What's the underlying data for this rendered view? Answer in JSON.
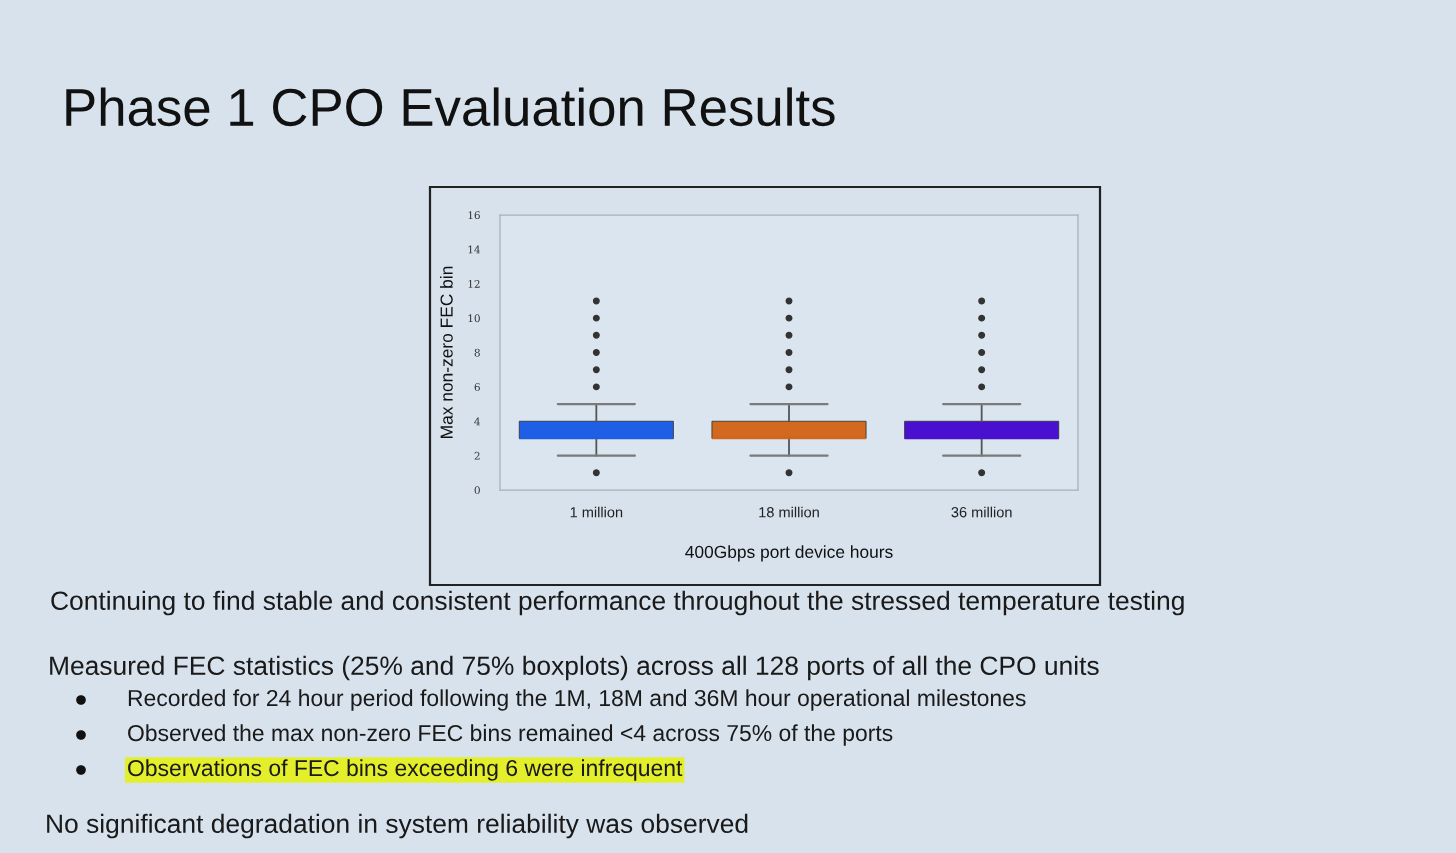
{
  "chart_data": {
    "type": "box",
    "title": "Phase 1 CPO Evaluation Results",
    "xlabel": "400Gbps port device hours",
    "ylabel": "Max non-zero FEC bin",
    "categories": [
      "1 million",
      "18 million",
      "36 million"
    ],
    "boxes": [
      {
        "low": 2,
        "q1": 3,
        "median": 3,
        "q3": 4,
        "high": 5,
        "outliers": [
          1,
          6,
          7,
          8,
          9,
          10,
          11
        ]
      },
      {
        "low": 2,
        "q1": 3,
        "median": 3,
        "q3": 4,
        "high": 5,
        "outliers": [
          1,
          6,
          7,
          8,
          9,
          10,
          11
        ]
      },
      {
        "low": 2,
        "q1": 3,
        "median": 3,
        "q3": 4,
        "high": 5,
        "outliers": [
          1,
          6,
          7,
          8,
          9,
          10,
          11
        ]
      }
    ],
    "colors": [
      "#1f5fe6",
      "#d2691e",
      "#4a10cf"
    ],
    "ylim": [
      0,
      16
    ],
    "yticks": [
      0,
      2,
      4,
      6,
      8,
      10,
      12,
      14,
      16
    ],
    "grid": false,
    "annotations": [
      "Continuing to find stable and consistent performance throughout the stressed temperature testing",
      "Measured FEC statistics (25% and 75% boxplots) across all 128 ports of all the CPO units",
      "Recorded for 24 hour period following the 1M, 18M and 36M hour operational milestones",
      "Observed the max non-zero FEC bins remained <4 across 75% of the ports",
      "Observations of FEC bins exceeding 6 were infrequent",
      "No significant degradation in system reliability was observed"
    ]
  }
}
